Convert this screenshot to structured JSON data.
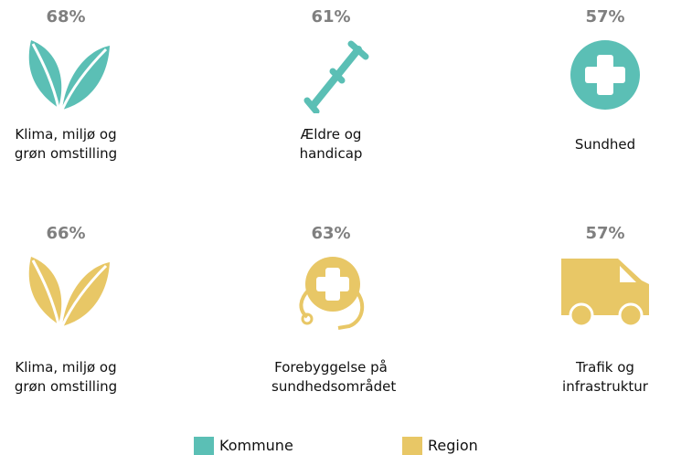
{
  "chart_data": {
    "type": "pictograph",
    "series": [
      {
        "name": "Kommune",
        "color": "#5bbfb5",
        "categories": [
          "Klima, miljø og grøn omstilling",
          "Ældre og handicap",
          "Sundhed"
        ],
        "values": [
          68,
          61,
          57
        ],
        "value_labels": [
          "68%",
          "61%",
          "57%"
        ]
      },
      {
        "name": "Region",
        "color": "#e8c766",
        "categories": [
          "Klima, miljø og grøn omstilling",
          "Forebyggelse på sundhedsområdet",
          "Trafik og infrastruktur"
        ],
        "values": [
          66,
          63,
          57
        ],
        "value_labels": [
          "66%",
          "63%",
          "57%"
        ]
      }
    ]
  }
}
